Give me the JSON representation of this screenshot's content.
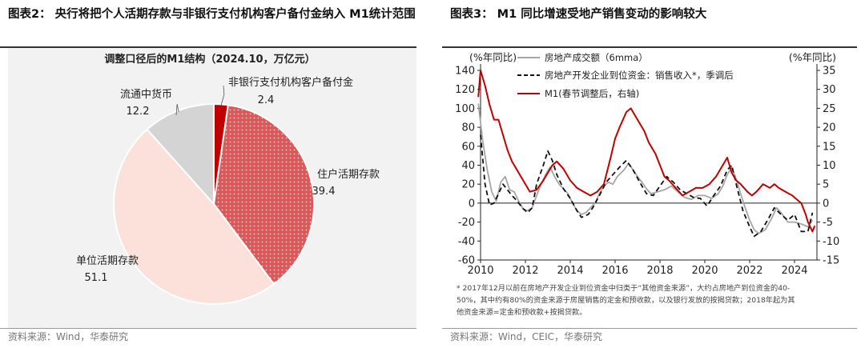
{
  "left_figure": {
    "heading": "图表2：  央行将把个人活期存款与非银行支付机构客户备付金纳入  M1统计范围",
    "source": "资料来源：Wind，华泰研究"
  },
  "right_figure": {
    "heading": "图表3：  M1 同比增速受地产销售变动的影响较大",
    "source": "资料来源：Wind，CEIC，华泰研究",
    "footnote": [
      "* 2017年12月以前在房地产开发企业到位资金中归类于“其他资金来源”，大约占房地产到位资金的40-",
      "50%，其中约有80%的资金来源于房屋销售的定金和预收款，以及银行发放的按揭贷款；2018年起为其",
      "他资金来源=定金和预收款+按揭贷款。"
    ]
  },
  "chart_data": [
    {
      "type": "pie",
      "title": "调整口径后的M1结构（2024.10，万亿元）",
      "slices": [
        {
          "label": "非银行支付机构客户备付金",
          "value": 2.4,
          "display": "2.4",
          "color": "#c00000"
        },
        {
          "label": "住户活期存款",
          "value": 39.4,
          "display": "39.4",
          "color": "#d9595b"
        },
        {
          "label": "单位活期存款",
          "value": 51.1,
          "display": "51.1",
          "color": "#fbe1da"
        },
        {
          "label": "流通中货币",
          "value": 12.2,
          "display": "12.2",
          "color": "#d4d4d4"
        }
      ]
    },
    {
      "type": "line",
      "title": "",
      "left_axis": {
        "label": "(%年同比)",
        "ylim": [
          -60,
          140
        ],
        "ticks": [
          -60,
          -40,
          -20,
          0,
          20,
          40,
          60,
          80,
          100,
          120,
          140
        ]
      },
      "right_axis": {
        "label": "(%年同比)",
        "ylim": [
          -15,
          35
        ],
        "ticks": [
          -15,
          -10,
          -5,
          0,
          5,
          10,
          15,
          20,
          25,
          30,
          35
        ]
      },
      "x_axis": {
        "xlim": [
          2010,
          2025
        ],
        "ticks": [
          2010,
          2012,
          2014,
          2016,
          2018,
          2020,
          2022,
          2024
        ]
      },
      "series": [
        {
          "name": "房地产成交额（6mma）",
          "axis": "left",
          "color": "#a6a6a6",
          "dash": "none",
          "points": [
            [
              2009.9,
              105
            ],
            [
              2010.1,
              65
            ],
            [
              2010.3,
              35
            ],
            [
              2010.5,
              12
            ],
            [
              2010.7,
              2
            ],
            [
              2010.9,
              22
            ],
            [
              2011.1,
              28
            ],
            [
              2011.3,
              14
            ],
            [
              2011.5,
              12
            ],
            [
              2011.7,
              2
            ],
            [
              2011.9,
              -6
            ],
            [
              2012.1,
              -8
            ],
            [
              2012.3,
              -5
            ],
            [
              2012.5,
              8
            ],
            [
              2012.7,
              20
            ],
            [
              2012.9,
              30
            ],
            [
              2013.1,
              38
            ],
            [
              2013.3,
              28
            ],
            [
              2013.5,
              20
            ],
            [
              2013.7,
              15
            ],
            [
              2013.9,
              10
            ],
            [
              2014.1,
              0
            ],
            [
              2014.3,
              -8
            ],
            [
              2014.5,
              -12
            ],
            [
              2014.7,
              -10
            ],
            [
              2014.9,
              -5
            ],
            [
              2015.1,
              0
            ],
            [
              2015.3,
              10
            ],
            [
              2015.5,
              18
            ],
            [
              2015.7,
              22
            ],
            [
              2015.9,
              20
            ],
            [
              2016.1,
              28
            ],
            [
              2016.4,
              35
            ],
            [
              2016.6,
              42
            ],
            [
              2016.8,
              35
            ],
            [
              2017.0,
              28
            ],
            [
              2017.2,
              22
            ],
            [
              2017.4,
              15
            ],
            [
              2017.6,
              10
            ],
            [
              2017.9,
              12
            ],
            [
              2018.2,
              14
            ],
            [
              2018.5,
              18
            ],
            [
              2018.8,
              12
            ],
            [
              2019.1,
              6
            ],
            [
              2019.4,
              4
            ],
            [
              2019.7,
              8
            ],
            [
              2020.0,
              8
            ],
            [
              2020.3,
              5
            ],
            [
              2020.6,
              10
            ],
            [
              2020.8,
              18
            ],
            [
              2021.0,
              30
            ],
            [
              2021.2,
              38
            ],
            [
              2021.4,
              25
            ],
            [
              2021.6,
              10
            ],
            [
              2021.8,
              -5
            ],
            [
              2022.0,
              -18
            ],
            [
              2022.2,
              -28
            ],
            [
              2022.4,
              -32
            ],
            [
              2022.7,
              -28
            ],
            [
              2023.0,
              -15
            ],
            [
              2023.2,
              -5
            ],
            [
              2023.4,
              -10
            ],
            [
              2023.7,
              -20
            ],
            [
              2024.0,
              -20
            ],
            [
              2024.3,
              -22
            ],
            [
              2024.6,
              -25
            ],
            [
              2024.8,
              -18
            ]
          ]
        },
        {
          "name": "房地产开发企业到位资金：销售收入*，季调后",
          "axis": "left",
          "color": "#111111",
          "dash": "6,4",
          "points": [
            [
              2010.0,
              72
            ],
            [
              2010.2,
              20
            ],
            [
              2010.4,
              -2
            ],
            [
              2010.6,
              0
            ],
            [
              2010.8,
              10
            ],
            [
              2011.0,
              20
            ],
            [
              2011.2,
              14
            ],
            [
              2011.4,
              8
            ],
            [
              2011.6,
              3
            ],
            [
              2011.9,
              -6
            ],
            [
              2012.1,
              -10
            ],
            [
              2012.3,
              -5
            ],
            [
              2012.5,
              20
            ],
            [
              2012.8,
              40
            ],
            [
              2013.0,
              55
            ],
            [
              2013.2,
              45
            ],
            [
              2013.4,
              30
            ],
            [
              2013.7,
              15
            ],
            [
              2014.0,
              5
            ],
            [
              2014.3,
              -8
            ],
            [
              2014.5,
              -15
            ],
            [
              2014.8,
              -12
            ],
            [
              2015.0,
              -5
            ],
            [
              2015.3,
              8
            ],
            [
              2015.6,
              22
            ],
            [
              2015.9,
              30
            ],
            [
              2016.2,
              38
            ],
            [
              2016.5,
              45
            ],
            [
              2016.8,
              35
            ],
            [
              2017.1,
              22
            ],
            [
              2017.4,
              10
            ],
            [
              2017.7,
              8
            ],
            [
              2018.0,
              18
            ],
            [
              2018.3,
              28
            ],
            [
              2018.6,
              22
            ],
            [
              2018.9,
              14
            ],
            [
              2019.2,
              10
            ],
            [
              2019.5,
              6
            ],
            [
              2019.8,
              5
            ],
            [
              2020.1,
              -3
            ],
            [
              2020.4,
              8
            ],
            [
              2020.7,
              18
            ],
            [
              2021.0,
              35
            ],
            [
              2021.2,
              40
            ],
            [
              2021.4,
              20
            ],
            [
              2021.7,
              -8
            ],
            [
              2022.0,
              -25
            ],
            [
              2022.2,
              -35
            ],
            [
              2022.5,
              -30
            ],
            [
              2022.8,
              -18
            ],
            [
              2023.1,
              -5
            ],
            [
              2023.4,
              -12
            ],
            [
              2023.7,
              -18
            ],
            [
              2024.0,
              -12
            ],
            [
              2024.3,
              -30
            ],
            [
              2024.6,
              -30
            ],
            [
              2024.8,
              -10
            ]
          ]
        },
        {
          "name": "M1(春节调整后，右轴)",
          "axis": "right",
          "color": "#c00000",
          "dash": "none",
          "points": [
            [
              2009.9,
              28
            ],
            [
              2010.0,
              35
            ],
            [
              2010.2,
              31
            ],
            [
              2010.4,
              26
            ],
            [
              2010.6,
              22
            ],
            [
              2010.8,
              22
            ],
            [
              2011.0,
              18
            ],
            [
              2011.2,
              14
            ],
            [
              2011.4,
              11
            ],
            [
              2011.7,
              8
            ],
            [
              2012.0,
              5
            ],
            [
              2012.2,
              3
            ],
            [
              2012.5,
              3.5
            ],
            [
              2012.8,
              6
            ],
            [
              2013.0,
              8
            ],
            [
              2013.2,
              10
            ],
            [
              2013.4,
              11
            ],
            [
              2013.7,
              9
            ],
            [
              2014.0,
              6
            ],
            [
              2014.3,
              4
            ],
            [
              2014.6,
              3
            ],
            [
              2014.9,
              2
            ],
            [
              2015.2,
              3
            ],
            [
              2015.5,
              5
            ],
            [
              2015.8,
              12
            ],
            [
              2016.0,
              17
            ],
            [
              2016.2,
              20
            ],
            [
              2016.5,
              24
            ],
            [
              2016.7,
              25
            ],
            [
              2016.9,
              23
            ],
            [
              2017.1,
              21
            ],
            [
              2017.3,
              19
            ],
            [
              2017.5,
              16
            ],
            [
              2017.8,
              13
            ],
            [
              2018.0,
              10
            ],
            [
              2018.2,
              7
            ],
            [
              2018.4,
              6
            ],
            [
              2018.7,
              4
            ],
            [
              2019.0,
              2
            ],
            [
              2019.3,
              3
            ],
            [
              2019.6,
              4
            ],
            [
              2019.9,
              4
            ],
            [
              2020.2,
              5
            ],
            [
              2020.5,
              7
            ],
            [
              2020.8,
              10
            ],
            [
              2021.0,
              12
            ],
            [
              2021.2,
              8
            ],
            [
              2021.4,
              6
            ],
            [
              2021.6,
              5
            ],
            [
              2021.9,
              3
            ],
            [
              2022.1,
              2
            ],
            [
              2022.3,
              3
            ],
            [
              2022.6,
              5
            ],
            [
              2022.9,
              4
            ],
            [
              2023.1,
              5
            ],
            [
              2023.3,
              4
            ],
            [
              2023.6,
              3
            ],
            [
              2023.9,
              2
            ],
            [
              2024.1,
              1
            ],
            [
              2024.3,
              0
            ],
            [
              2024.5,
              -3
            ],
            [
              2024.6,
              -5
            ],
            [
              2024.8,
              -7.5
            ],
            [
              2024.9,
              -6
            ]
          ]
        }
      ]
    }
  ]
}
